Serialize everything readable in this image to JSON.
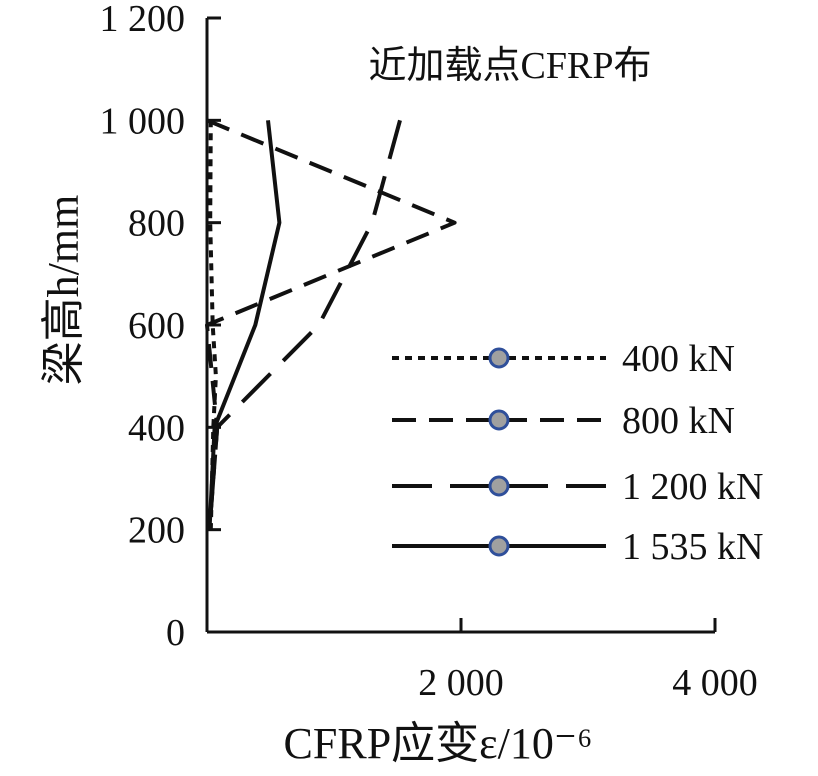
{
  "chart_data": {
    "type": "line",
    "title": "近加载点CFRP布",
    "xlabel": "CFRP应变ε/10⁻⁶",
    "ylabel": "梁高h/mm",
    "xlim": [
      0,
      4000
    ],
    "ylim": [
      0,
      1200
    ],
    "x_ticks": [
      "2 000",
      "4 000"
    ],
    "y_ticks": [
      "0",
      "200",
      "400",
      "600",
      "800",
      "1 000",
      "1 200"
    ],
    "x_tick_values": [
      2000,
      4000
    ],
    "y_tick_values": [
      0,
      200,
      400,
      600,
      800,
      1000,
      1200
    ],
    "grid": false,
    "legend_position": "right-center",
    "series": [
      {
        "name": "400 kN",
        "style": "dotted",
        "color": "#111111",
        "marker_color": "#a0a0a0",
        "marker_edge": "#2f4f9a",
        "points": [
          [
            30,
            1000
          ],
          [
            25,
            800
          ],
          [
            45,
            600
          ],
          [
            70,
            500
          ],
          [
            50,
            400
          ],
          [
            30,
            200
          ]
        ]
      },
      {
        "name": "800 kN",
        "style": "dashed",
        "color": "#111111",
        "marker_color": "#a0a0a0",
        "marker_edge": "#2f4f9a",
        "points": [
          [
            0,
            1000
          ],
          [
            1950,
            800
          ],
          [
            0,
            600
          ],
          [
            80,
            400
          ],
          [
            20,
            200
          ]
        ]
      },
      {
        "name": "1 200 kN",
        "style": "long-dash",
        "color": "#111111",
        "marker_color": "#a0a0a0",
        "marker_edge": "#2f4f9a",
        "points": [
          [
            1520,
            1000
          ],
          [
            1300,
            800
          ],
          [
            880,
            600
          ],
          [
            80,
            400
          ],
          [
            20,
            200
          ]
        ]
      },
      {
        "name": "1 535 kN",
        "style": "solid",
        "color": "#111111",
        "marker_color": "#a0a0a0",
        "marker_edge": "#2f4f9a",
        "points": [
          [
            480,
            1000
          ],
          [
            570,
            800
          ],
          [
            380,
            600
          ],
          [
            60,
            400
          ],
          [
            20,
            200
          ]
        ]
      }
    ]
  }
}
